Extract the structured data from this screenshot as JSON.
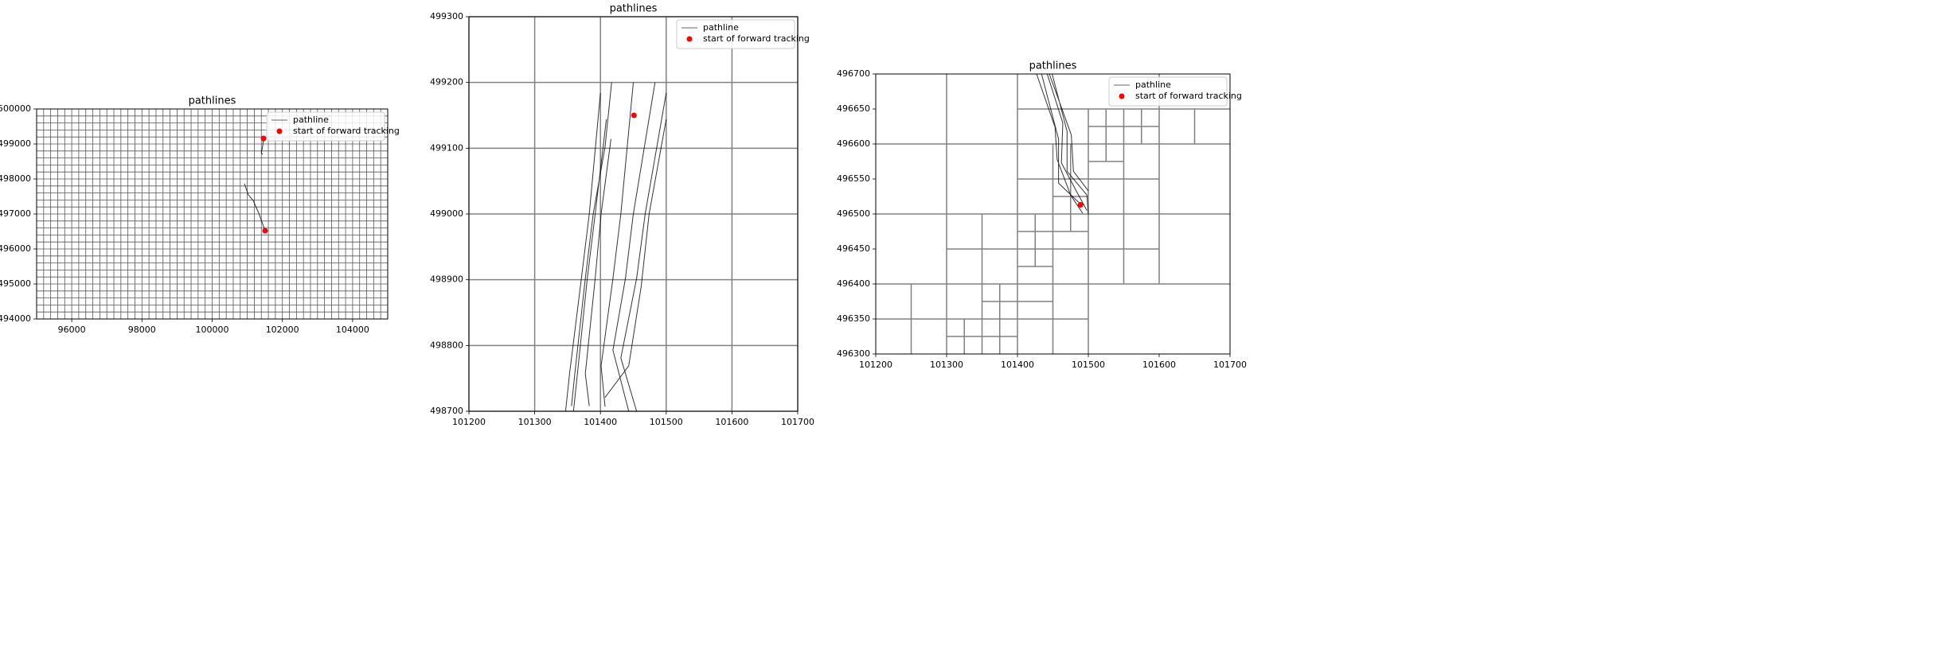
{
  "chart_data": [
    {
      "type": "line",
      "title": "pathlines",
      "legend": "upper right",
      "xlim": [
        95000,
        105000
      ],
      "ylim": [
        494000,
        500000
      ],
      "xticks": [
        96000,
        98000,
        100000,
        102000,
        104000
      ],
      "yticks": [
        494000,
        495000,
        496000,
        497000,
        498000,
        499000,
        500000
      ],
      "x_cell_edges": [
        95000,
        95200,
        95400,
        95600,
        95800,
        96000,
        96200,
        96400,
        96600,
        96800,
        97000,
        97200,
        97400,
        97600,
        97800,
        98000,
        98200,
        98400,
        98600,
        98800,
        99000,
        99200,
        99400,
        99600,
        99800,
        100000,
        100200,
        100400,
        100600,
        100800,
        101000,
        101200,
        101400,
        101600,
        101800,
        102000,
        102200,
        102400,
        102600,
        102800,
        103000,
        103200,
        103400,
        103600,
        103800,
        104000,
        104200,
        104400,
        104600,
        104800,
        105000
      ],
      "y_cell_edges": [
        494000,
        494200,
        494400,
        494600,
        494800,
        495000,
        495200,
        495400,
        495600,
        495800,
        496000,
        496200,
        496400,
        496600,
        496800,
        497000,
        497200,
        497400,
        497600,
        497800,
        498000,
        498200,
        498400,
        498600,
        498800,
        499000,
        499200,
        499400,
        499600,
        499800,
        500000
      ],
      "series": [
        {
          "name": "pathline",
          "type": "line",
          "color": "#000000",
          "x": [
            101463,
            101440,
            101400,
            101440,
            null,
            100918,
            101032,
            101168,
            101327,
            101508
          ],
          "values": [
            499182,
            498950,
            498750,
            498700,
            null,
            497864,
            497545,
            497386,
            497023,
            496523
          ]
        },
        {
          "name": "start of forward tracking",
          "type": "scatter",
          "color": "#ff0000",
          "x": [
            101463,
            101508
          ],
          "values": [
            499159,
            496523
          ]
        }
      ]
    },
    {
      "type": "line",
      "title": "pathlines",
      "legend": "upper right",
      "xlim": [
        101200,
        101700
      ],
      "ylim": [
        498700,
        499300
      ],
      "xticks": [
        101200,
        101300,
        101400,
        101500,
        101600,
        101700
      ],
      "yticks": [
        498700,
        498800,
        498900,
        499000,
        499100,
        499200,
        499300
      ],
      "x_cell_edges": [
        101200,
        101300,
        101400,
        101500,
        101600,
        101700
      ],
      "y_cell_edges": [
        498700,
        498800,
        498900,
        499000,
        499100,
        499200,
        499300
      ],
      "series": [
        {
          "name": "pathline",
          "type": "line",
          "color": "#000000",
          "x": [
            101400,
            101383,
            101371,
            101353,
            101347,
            null,
            101417,
            101407,
            101389,
            101377,
            101361,
            101356,
            null,
            101416,
            101401,
            101392,
            101377,
            101383,
            null,
            101450,
            101431,
            101419,
            101401,
            101407,
            null,
            101483,
            101450,
            101438,
            101419,
            101443,
            null,
            101500,
            101468,
            101455,
            101431,
            101455,
            null,
            101500,
            101474,
            101462,
            101443,
            101407,
            null,
            101409,
            101392,
            101380,
            101365,
            101359
          ],
          "values": [
            499184,
            499000,
            498902,
            498757,
            498700,
            null,
            499200,
            499102,
            499000,
            498902,
            498757,
            498708,
            null,
            499114,
            499000,
            498902,
            498757,
            498708,
            null,
            499200,
            499000,
            498902,
            498769,
            498707,
            null,
            499200,
            499000,
            498902,
            498793,
            498700,
            null,
            499184,
            499000,
            498902,
            498781,
            498700,
            null,
            499144,
            499000,
            498890,
            498769,
            498721,
            null,
            499144,
            499000,
            498902,
            498757,
            498700
          ]
        },
        {
          "name": "start of forward tracking",
          "type": "scatter",
          "color": "#ff0000",
          "x": [
            101451
          ],
          "values": [
            499150
          ]
        }
      ]
    },
    {
      "type": "line",
      "title": "pathlines",
      "legend": "upper right",
      "xlim": [
        101200,
        101700
      ],
      "ylim": [
        496300,
        496700
      ],
      "xticks": [
        101200,
        101300,
        101400,
        101500,
        101600,
        101700
      ],
      "yticks": [
        496300,
        496350,
        496400,
        496450,
        496500,
        496550,
        496600,
        496650,
        496700
      ],
      "cell_lines": [
        [
          101400,
          496650,
          101700,
          496650
        ],
        [
          101200,
          496600,
          101700,
          496600
        ],
        [
          101200,
          496500,
          101700,
          496500
        ],
        [
          101200,
          496400,
          101700,
          496400
        ],
        [
          101200,
          496350,
          101500,
          496350
        ],
        [
          101400,
          496550,
          101600,
          496550
        ],
        [
          101300,
          496450,
          101600,
          496450
        ],
        [
          101500,
          496625,
          101600,
          496625
        ],
        [
          101500,
          496575,
          101550,
          496575
        ],
        [
          101450,
          496525,
          101500,
          496525
        ],
        [
          101400,
          496475,
          101500,
          496475
        ],
        [
          101400,
          496425,
          101450,
          496425
        ],
        [
          101350,
          496375,
          101450,
          496375
        ],
        [
          101300,
          496325,
          101400,
          496325
        ],
        [
          101300,
          496300,
          101300,
          496700
        ],
        [
          101400,
          496300,
          101400,
          496700
        ],
        [
          101600,
          496400,
          101600,
          496700
        ],
        [
          101500,
          496300,
          101500,
          496650
        ],
        [
          101250,
          496300,
          101250,
          496400
        ],
        [
          101350,
          496300,
          101350,
          496500
        ],
        [
          101450,
          496300,
          101450,
          496600
        ],
        [
          101550,
          496400,
          101550,
          496650
        ],
        [
          101650,
          496600,
          101650,
          496650
        ],
        [
          101425,
          496425,
          101425,
          496500
        ],
        [
          101475,
          496475,
          101475,
          496600
        ],
        [
          101525,
          496575,
          101525,
          496650
        ],
        [
          101575,
          496600,
          101575,
          496650
        ],
        [
          101325,
          496300,
          101325,
          496350
        ],
        [
          101375,
          496300,
          101375,
          496400
        ]
      ],
      "series": [
        {
          "name": "pathline",
          "type": "line",
          "color": "#000000",
          "x": [
            101427,
            101453,
            101456,
            101475,
            101492,
            null,
            101442,
            101464,
            101462,
            101483,
            101498,
            null,
            101449,
            101470,
            101470,
            101498,
            101500,
            null,
            101434,
            101458,
            101458,
            101487,
            null,
            101445,
            101476,
            101479,
            101500
          ],
          "values": [
            496700,
            496624,
            496578,
            496527,
            496501,
            null,
            496700,
            496630,
            496573,
            496533,
            496505,
            null,
            496700,
            496618,
            496561,
            496527,
            496499,
            null,
            496700,
            496607,
            496544,
            496516,
            null,
            496700,
            496613,
            496561,
            496533
          ]
        },
        {
          "name": "start of forward tracking",
          "type": "scatter",
          "color": "#ff0000",
          "x": [
            101489
          ],
          "values": [
            496513
          ]
        }
      ]
    }
  ]
}
